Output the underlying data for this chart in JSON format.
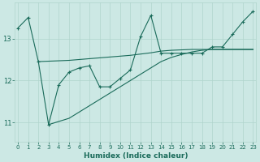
{
  "xlabel": "Humidex (Indice chaleur)",
  "bg_color": "#cce8e4",
  "grid_color": "#b0d4cc",
  "line_color": "#1a6b5a",
  "x_ticks": [
    0,
    1,
    2,
    3,
    4,
    5,
    6,
    7,
    8,
    9,
    10,
    11,
    12,
    13,
    14,
    15,
    16,
    17,
    18,
    19,
    20,
    21,
    22,
    23
  ],
  "y_ticks": [
    11,
    12,
    13
  ],
  "xlim": [
    -0.3,
    23.3
  ],
  "ylim": [
    10.55,
    13.85
  ],
  "series1_x": [
    0,
    1,
    2,
    3,
    4,
    5,
    6,
    7,
    8,
    9,
    10,
    11,
    12,
    13,
    14,
    15,
    16,
    17,
    18,
    19,
    20,
    21,
    22,
    23
  ],
  "series1_y": [
    13.25,
    13.5,
    12.45,
    10.95,
    11.9,
    12.2,
    12.3,
    12.35,
    11.85,
    11.85,
    12.05,
    12.25,
    13.05,
    13.55,
    12.65,
    12.65,
    12.65,
    12.65,
    12.65,
    12.8,
    12.8,
    13.1,
    13.4,
    13.65
  ],
  "series2_x": [
    2,
    3,
    4,
    5,
    6,
    7,
    8,
    9,
    10,
    11,
    12,
    13,
    14,
    15,
    16,
    17,
    18,
    19,
    20,
    21,
    22,
    23
  ],
  "series2_y": [
    12.45,
    12.46,
    12.47,
    12.48,
    12.5,
    12.52,
    12.54,
    12.56,
    12.58,
    12.6,
    12.63,
    12.66,
    12.7,
    12.72,
    12.73,
    12.74,
    12.74,
    12.74,
    12.74,
    12.74,
    12.74,
    12.74
  ],
  "series3_x": [
    3,
    5,
    6,
    7,
    8,
    9,
    10,
    11,
    12,
    13,
    14,
    15,
    16,
    17,
    18,
    19,
    20,
    21,
    22,
    23
  ],
  "series3_y": [
    10.95,
    11.1,
    11.25,
    11.4,
    11.55,
    11.7,
    11.85,
    12.0,
    12.15,
    12.3,
    12.45,
    12.55,
    12.62,
    12.68,
    12.72,
    12.74,
    12.74,
    12.74,
    12.74,
    12.74
  ]
}
